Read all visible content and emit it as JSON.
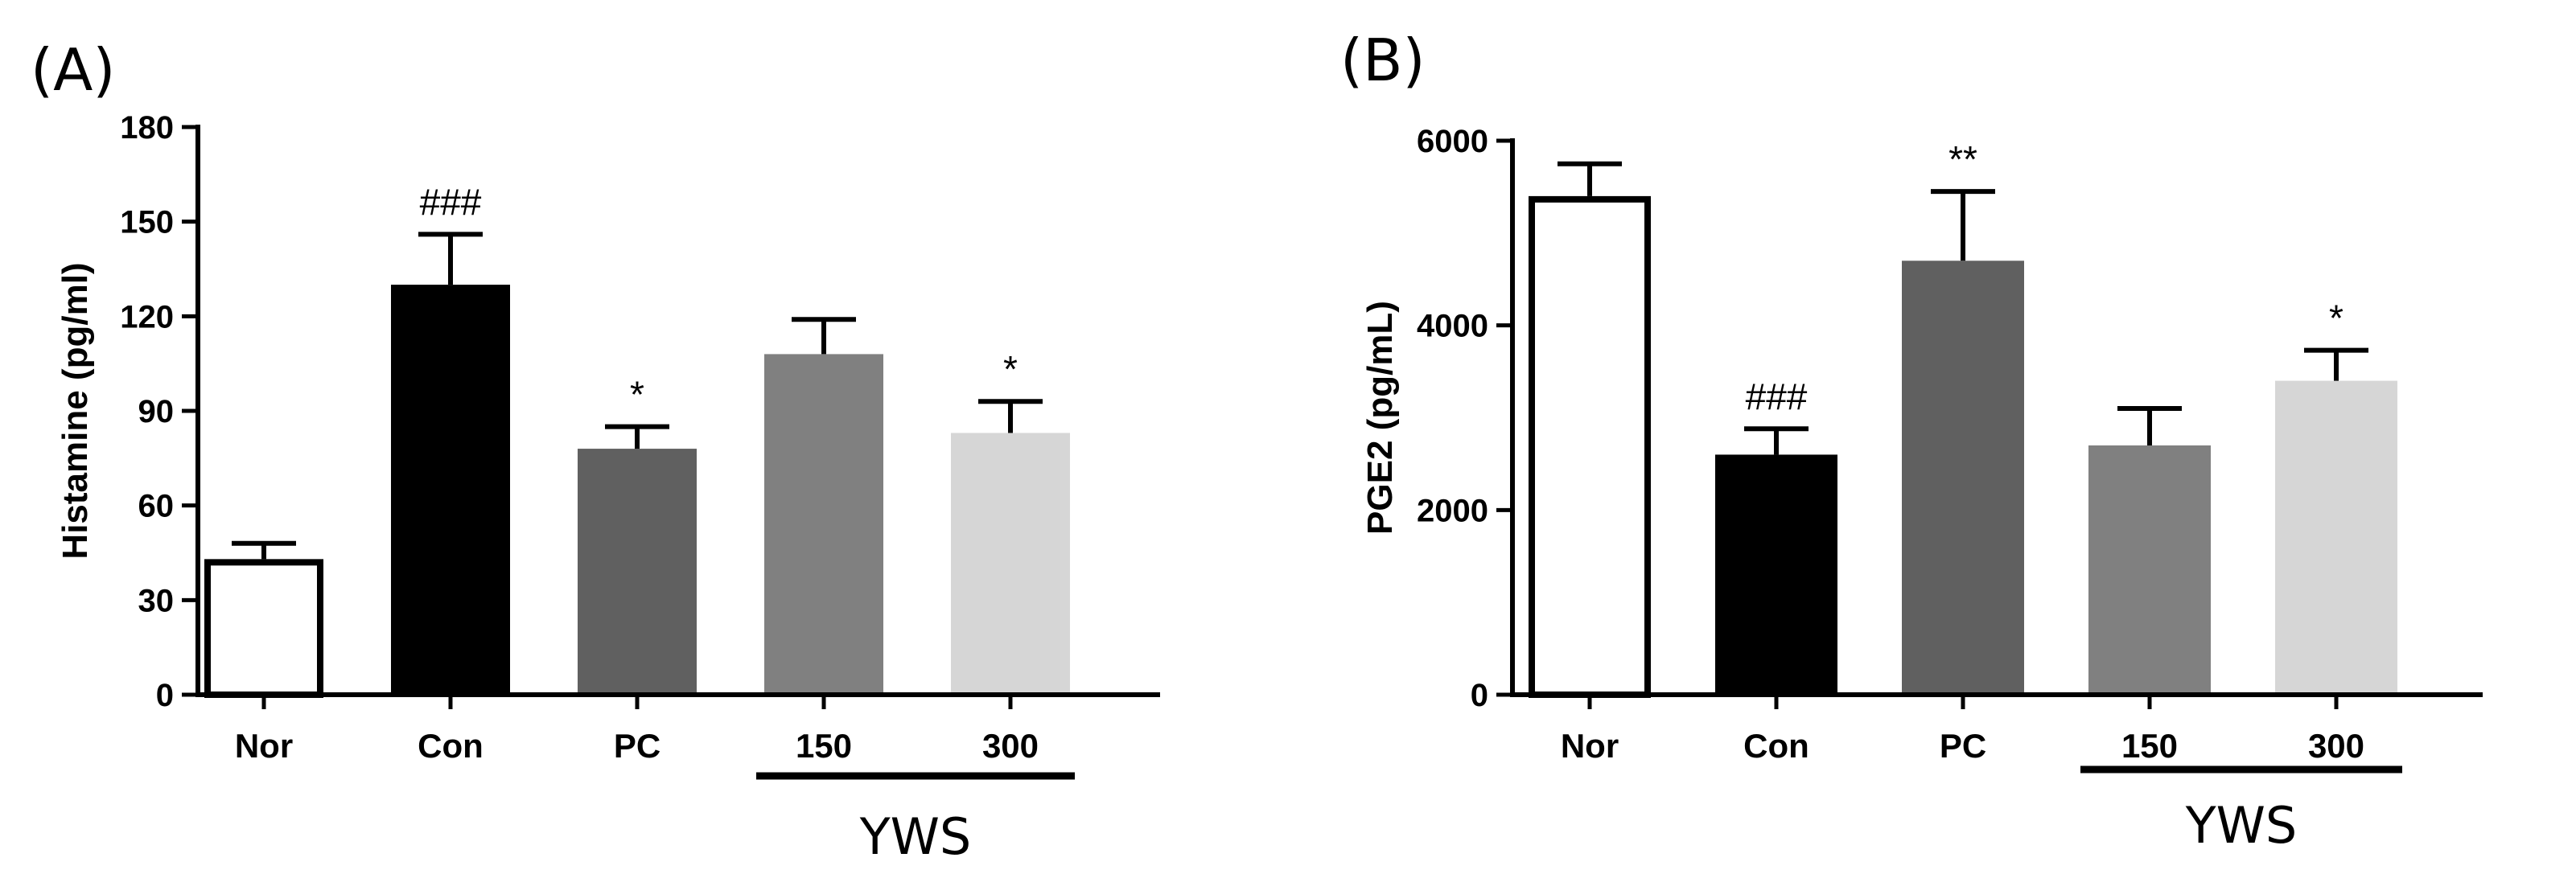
{
  "chart_data": [
    {
      "type": "bar",
      "panel_label": "(A)",
      "ylabel": "Histamine (pg/ml)",
      "ylim": [
        0,
        180
      ],
      "yticks": [
        0,
        30,
        60,
        90,
        120,
        150,
        180
      ],
      "ytick_labels": [
        "0",
        "30",
        "60",
        "90",
        "120",
        "150",
        "180"
      ],
      "categories": [
        "Nor",
        "Con",
        "PC",
        "150",
        "300"
      ],
      "values": [
        43,
        130,
        78,
        108,
        83
      ],
      "errors": [
        5,
        16,
        7,
        11,
        10
      ],
      "significance": [
        "",
        "###",
        "*",
        "",
        "*"
      ],
      "bar_colors": [
        "#ffffff",
        "#000000",
        "#606060",
        "#808080",
        "#d6d6d6"
      ],
      "group": {
        "label": "YWS",
        "from": 3,
        "to": 4
      }
    },
    {
      "type": "bar",
      "panel_label": "(B)",
      "ylabel": "PGE2 (pg/mL)",
      "ylim": [
        0,
        6000
      ],
      "yticks": [
        0,
        2000,
        4000,
        6000
      ],
      "ytick_labels": [
        "0",
        "2000",
        "4000",
        "6000"
      ],
      "categories": [
        "Nor",
        "Con",
        "PC",
        "150",
        "300"
      ],
      "values": [
        5400,
        2600,
        4700,
        2700,
        3400
      ],
      "errors": [
        350,
        280,
        750,
        400,
        330
      ],
      "significance": [
        "",
        "###",
        "**",
        "",
        "*"
      ],
      "bar_colors": [
        "#ffffff",
        "#000000",
        "#606060",
        "#808080",
        "#d6d6d6"
      ],
      "group": {
        "label": "YWS",
        "from": 3,
        "to": 4
      }
    }
  ]
}
